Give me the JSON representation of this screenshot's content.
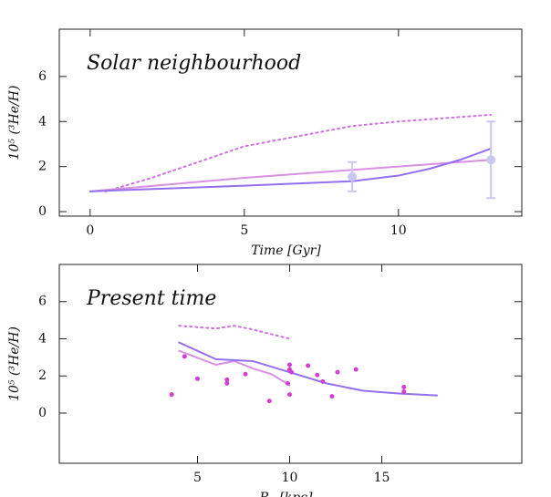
{
  "chart_data": [
    {
      "type": "line",
      "title": "Solar neighbourhood",
      "x_label": "Time [Gyr]",
      "y_label": "10⁵ (³He/H)",
      "xlim": [
        -1,
        14
      ],
      "xticks": [
        0,
        5,
        10
      ],
      "ylim": [
        -0.2,
        8.1
      ],
      "yticks": [
        0,
        2,
        4,
        6
      ],
      "series": [
        {
          "style": "dotted",
          "color": "#d070e0",
          "x": [
            0.5,
            2,
            5,
            8.5,
            10,
            13
          ],
          "values": [
            0.9,
            1.5,
            2.9,
            3.8,
            4.0,
            4.3
          ]
        },
        {
          "style": "solid",
          "color": "#d890e0",
          "x": [
            0,
            5,
            10,
            13
          ],
          "values": [
            0.9,
            1.5,
            2.0,
            2.3
          ]
        },
        {
          "style": "solid",
          "color": "#9370ee",
          "x": [
            0,
            5,
            8.5,
            10,
            11,
            12,
            13
          ],
          "values": [
            0.9,
            1.15,
            1.35,
            1.6,
            1.9,
            2.3,
            2.8
          ]
        },
        {
          "style": "errorbar",
          "color": "#c8c8f0",
          "x": [
            8.5,
            13
          ],
          "values": [
            1.55,
            2.3
          ],
          "errors": [
            0.65,
            1.7
          ]
        }
      ]
    },
    {
      "type": "line",
      "title": "Present time",
      "x_label": "R",
      "x_label_sub": "G",
      "x_label_unit": "[kpc]",
      "y_label": "10⁵ (³He/H)",
      "xlim": [
        -2.5,
        22.6
      ],
      "xticks": [
        5,
        10,
        15
      ],
      "ylim": [
        -2.7,
        8
      ],
      "yticks": [
        0,
        2,
        4,
        6
      ],
      "series": [
        {
          "style": "dotted",
          "color": "#d070e0",
          "x": [
            4,
            6,
            7,
            8,
            10
          ],
          "values": [
            4.7,
            4.55,
            4.7,
            4.5,
            4.0
          ]
        },
        {
          "style": "solid",
          "color": "#d890e0",
          "x": [
            4,
            6,
            7,
            8,
            9,
            10
          ],
          "values": [
            3.35,
            2.6,
            2.8,
            2.4,
            2.1,
            1.5
          ]
        },
        {
          "style": "solid",
          "color": "#9370ee",
          "x": [
            4,
            6,
            8,
            10,
            12,
            14,
            16,
            18
          ],
          "values": [
            3.8,
            2.9,
            2.8,
            2.2,
            1.6,
            1.2,
            1.05,
            0.95
          ]
        },
        {
          "style": "markers",
          "color": "#d23fd2",
          "x": [
            3.6,
            4.3,
            5,
            6.6,
            6.6,
            7.6,
            8.9,
            9.9,
            10,
            10,
            10,
            10.1,
            11,
            11.5,
            11.8,
            12.3,
            12.6,
            13.6,
            16.2,
            16.2
          ],
          "values": [
            1.0,
            3.05,
            1.85,
            1.8,
            1.6,
            2.1,
            0.65,
            1.6,
            2.6,
            2.35,
            1.0,
            2.2,
            2.55,
            2.05,
            1.7,
            0.9,
            2.2,
            2.35,
            1.4,
            1.15
          ]
        }
      ]
    }
  ]
}
